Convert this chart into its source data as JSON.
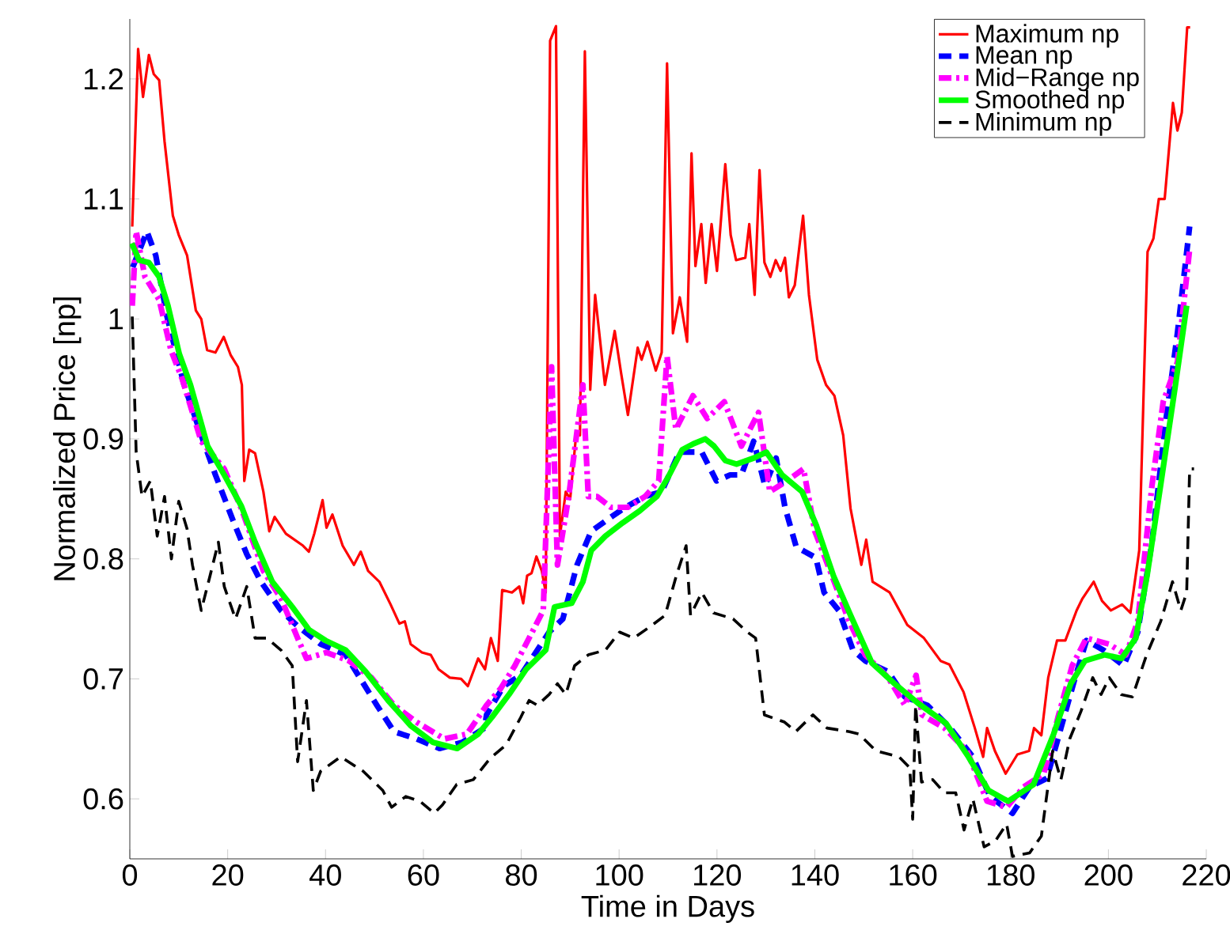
{
  "chart_data": {
    "type": "line",
    "xlabel": "Time in Days",
    "ylabel": "Normalized Price [np]",
    "xlim": [
      0,
      220
    ],
    "ylim": [
      0.55,
      1.25
    ],
    "xticks": [
      0,
      20,
      40,
      60,
      80,
      100,
      120,
      140,
      160,
      180,
      200,
      220
    ],
    "yticks": [
      0.6,
      0.7,
      0.8,
      0.9,
      1,
      1.1,
      1.2
    ],
    "legend": "top right",
    "series": [
      {
        "name": "Maximum np",
        "color": "#ff0000",
        "line_style": "solid",
        "x": [
          0.5,
          1.7,
          2.7,
          3.9,
          4.9,
          6.0,
          7.1,
          8.8,
          10.0,
          11.7,
          13.5,
          14.6,
          15.8,
          17.5,
          19.2,
          20.6,
          22.1,
          22.9,
          23.4,
          24.4,
          25.6,
          27.3,
          28.5,
          29.6,
          31.9,
          35.4,
          36.6,
          37.7,
          39.4,
          40.2,
          41.4,
          43.5,
          45.8,
          47.2,
          48.7,
          51.0,
          53.3,
          55.1,
          56.2,
          57.4,
          59.7,
          61.5,
          63.1,
          65.4,
          67.7,
          69.1,
          71.2,
          72.6,
          73.8,
          75.2,
          76.1,
          78.1,
          79.6,
          80.4,
          81.2,
          82.1,
          83.1,
          84.2,
          85.0,
          85.9,
          87.1,
          87.9,
          89.1,
          90.0,
          91.2,
          92.0,
          93.0,
          94.1,
          95.1,
          97.1,
          99.1,
          100.4,
          101.8,
          103.8,
          104.6,
          105.8,
          107.5,
          108.7,
          109.8,
          111.0,
          112.4,
          113.9,
          114.8,
          115.6,
          116.8,
          117.7,
          118.9,
          120.0,
          121.7,
          122.8,
          123.9,
          125.8,
          126.6,
          127.7,
          128.7,
          129.7,
          130.9,
          132.0,
          133.0,
          133.9,
          134.7,
          135.9,
          137.6,
          138.8,
          140.5,
          142.3,
          144.0,
          145.8,
          147.3,
          149.5,
          150.5,
          151.8,
          155.3,
          158.9,
          162.3,
          165.7,
          167.5,
          170.4,
          172.7,
          174.4,
          175.2,
          176.8,
          179.0,
          181.4,
          183.8,
          184.8,
          186.3,
          187.7,
          189.5,
          191.2,
          193.5,
          194.7,
          197.0,
          198.7,
          200.5,
          202.8,
          204.5,
          206.3,
          208.0,
          209.2,
          210.3,
          211.5,
          213.2,
          214.1,
          215.0,
          216.1,
          216.7
        ],
        "values": [
          1.077,
          1.225,
          1.185,
          1.22,
          1.204,
          1.199,
          1.148,
          1.086,
          1.07,
          1.053,
          1.007,
          1.0,
          0.974,
          0.972,
          0.985,
          0.97,
          0.96,
          0.945,
          0.865,
          0.891,
          0.888,
          0.856,
          0.823,
          0.835,
          0.821,
          0.811,
          0.806,
          0.821,
          0.849,
          0.826,
          0.837,
          0.811,
          0.795,
          0.806,
          0.79,
          0.781,
          0.762,
          0.746,
          0.748,
          0.729,
          0.722,
          0.72,
          0.708,
          0.701,
          0.7,
          0.694,
          0.717,
          0.708,
          0.734,
          0.715,
          0.774,
          0.772,
          0.777,
          0.763,
          0.786,
          0.788,
          0.802,
          0.79,
          0.772,
          1.232,
          1.244,
          0.819,
          0.856,
          0.85,
          0.903,
          0.903,
          1.223,
          0.941,
          1.02,
          0.945,
          0.99,
          0.955,
          0.92,
          0.976,
          0.966,
          0.981,
          0.957,
          0.972,
          1.213,
          0.988,
          1.018,
          0.981,
          1.138,
          1.044,
          1.079,
          1.03,
          1.079,
          1.04,
          1.129,
          1.07,
          1.049,
          1.051,
          1.079,
          1.02,
          1.124,
          1.047,
          1.035,
          1.049,
          1.04,
          1.051,
          1.018,
          1.028,
          1.086,
          1.02,
          0.966,
          0.945,
          0.936,
          0.903,
          0.842,
          0.795,
          0.816,
          0.781,
          0.772,
          0.745,
          0.734,
          0.715,
          0.712,
          0.689,
          0.659,
          0.635,
          0.659,
          0.64,
          0.621,
          0.637,
          0.64,
          0.659,
          0.653,
          0.701,
          0.732,
          0.732,
          0.757,
          0.767,
          0.781,
          0.765,
          0.757,
          0.762,
          0.755,
          0.807,
          1.056,
          1.067,
          1.1,
          1.1,
          1.18,
          1.157,
          1.172,
          1.243,
          1.243
        ]
      },
      {
        "name": "Mean np",
        "color": "#0000ff",
        "line_style": "dashed",
        "x": [
          0.6,
          3.5,
          5.3,
          7.6,
          11.1,
          14.6,
          17.5,
          21.0,
          23.9,
          26.8,
          30.9,
          34.3,
          39.0,
          44.1,
          47.0,
          50.5,
          54.0,
          58.6,
          63.3,
          67.9,
          72.5,
          72.9,
          76.4,
          79.9,
          83.3,
          85.7,
          88.5,
          91.4,
          94.3,
          97.7,
          101.3,
          105.3,
          108.7,
          112.3,
          116.9,
          119.9,
          122.7,
          125.0,
          127.5,
          129.8,
          132.1,
          133.9,
          136.2,
          140.2,
          141.9,
          144.9,
          147.8,
          150.3,
          155.0,
          158.4,
          163.0,
          167.7,
          172.3,
          175.8,
          180.4,
          183.9,
          187.4,
          190.3,
          193.2,
          195.5,
          199.0,
          203.1,
          206.0,
          208.9,
          211.8,
          214.1,
          216.6
        ],
        "values": [
          1.043,
          1.073,
          1.053,
          1.002,
          0.945,
          0.903,
          0.87,
          0.833,
          0.804,
          0.781,
          0.757,
          0.744,
          0.729,
          0.72,
          0.701,
          0.678,
          0.656,
          0.65,
          0.642,
          0.647,
          0.659,
          0.67,
          0.694,
          0.703,
          0.724,
          0.739,
          0.75,
          0.795,
          0.823,
          0.833,
          0.843,
          0.852,
          0.856,
          0.889,
          0.889,
          0.865,
          0.87,
          0.87,
          0.898,
          0.861,
          0.884,
          0.843,
          0.81,
          0.801,
          0.772,
          0.757,
          0.724,
          0.715,
          0.706,
          0.685,
          0.678,
          0.659,
          0.635,
          0.602,
          0.588,
          0.61,
          0.617,
          0.659,
          0.701,
          0.732,
          0.724,
          0.711,
          0.739,
          0.814,
          0.917,
          0.988,
          1.077
        ]
      },
      {
        "name": "Mid−Range np",
        "color": "#ff00ff",
        "line_style": "dashdot",
        "x": [
          0.5,
          1.3,
          3.1,
          6.0,
          8.4,
          10.7,
          14.6,
          19.3,
          22.8,
          27.3,
          30.9,
          34.3,
          36.1,
          40.2,
          44.8,
          49.4,
          54.0,
          58.6,
          64.3,
          68.9,
          72.9,
          75.8,
          78.7,
          81.6,
          84.5,
          86.2,
          87.4,
          89.7,
          92.6,
          93.7,
          95.5,
          98.3,
          101.8,
          105.3,
          108.1,
          109.8,
          111.6,
          115.1,
          118.0,
          121.5,
          125.0,
          128.5,
          130.8,
          134.3,
          137.7,
          140.0,
          143.5,
          147.0,
          150.3,
          155.0,
          158.4,
          160.7,
          161.9,
          166.5,
          171.1,
          175.2,
          179.2,
          182.7,
          186.8,
          189.7,
          192.6,
          195.5,
          200.1,
          203.6,
          206.0,
          208.9,
          211.2,
          214.1,
          216.6
        ],
        "values": [
          1.011,
          1.073,
          1.035,
          1.016,
          0.974,
          0.95,
          0.898,
          0.875,
          0.842,
          0.79,
          0.767,
          0.734,
          0.717,
          0.722,
          0.715,
          0.701,
          0.678,
          0.664,
          0.65,
          0.654,
          0.678,
          0.692,
          0.711,
          0.734,
          0.757,
          0.96,
          0.795,
          0.852,
          0.945,
          0.852,
          0.852,
          0.843,
          0.843,
          0.852,
          0.865,
          0.969,
          0.908,
          0.936,
          0.917,
          0.931,
          0.894,
          0.922,
          0.856,
          0.865,
          0.875,
          0.823,
          0.786,
          0.748,
          0.72,
          0.701,
          0.678,
          0.703,
          0.67,
          0.659,
          0.64,
          0.598,
          0.593,
          0.61,
          0.621,
          0.668,
          0.711,
          0.734,
          0.729,
          0.72,
          0.748,
          0.861,
          0.931,
          0.964,
          1.058
        ]
      },
      {
        "name": "Smoothed np",
        "color": "#00ff00",
        "line_style": "solid",
        "x": [
          0.4,
          1.9,
          3.9,
          6.0,
          7.8,
          10.1,
          12.4,
          15.9,
          19.3,
          22.8,
          25.6,
          29.1,
          33.2,
          36.6,
          40.0,
          44.1,
          48.2,
          52.8,
          57.4,
          62.0,
          66.9,
          71.2,
          74.0,
          77.5,
          81.0,
          85.0,
          86.8,
          90.3,
          92.6,
          94.3,
          97.2,
          100.7,
          104.2,
          107.7,
          110.0,
          112.9,
          115.2,
          117.6,
          119.4,
          121.7,
          124.0,
          127.5,
          130.1,
          133.3,
          137.4,
          140.3,
          143.8,
          147.3,
          151.7,
          156.3,
          161.0,
          166.8,
          171.4,
          175.5,
          179.5,
          184.7,
          188.8,
          192.3,
          195.2,
          199.2,
          202.7,
          205.6,
          207.9,
          210.8,
          213.7,
          216.0
        ],
        "values": [
          1.063,
          1.049,
          1.047,
          1.035,
          1.011,
          0.971,
          0.945,
          0.894,
          0.87,
          0.844,
          0.814,
          0.781,
          0.76,
          0.741,
          0.732,
          0.724,
          0.706,
          0.682,
          0.661,
          0.647,
          0.642,
          0.654,
          0.668,
          0.687,
          0.708,
          0.724,
          0.76,
          0.763,
          0.781,
          0.807,
          0.819,
          0.83,
          0.84,
          0.852,
          0.868,
          0.891,
          0.896,
          0.9,
          0.894,
          0.882,
          0.879,
          0.884,
          0.889,
          0.87,
          0.856,
          0.828,
          0.786,
          0.753,
          0.713,
          0.696,
          0.68,
          0.663,
          0.635,
          0.607,
          0.598,
          0.612,
          0.654,
          0.696,
          0.715,
          0.72,
          0.717,
          0.734,
          0.786,
          0.865,
          0.945,
          1.011
        ]
      },
      {
        "name": "Minimum np",
        "color": "#000000",
        "line_style": "dashed",
        "x": [
          0.5,
          1.3,
          2.5,
          4.2,
          5.6,
          7.1,
          8.5,
          10.0,
          11.7,
          12.8,
          14.6,
          16.4,
          18.1,
          19.3,
          21.6,
          23.9,
          25.6,
          28.0,
          30.9,
          33.2,
          34.3,
          36.1,
          37.5,
          39.0,
          43.1,
          47.7,
          51.7,
          53.5,
          56.4,
          59.3,
          62.2,
          63.9,
          66.8,
          70.2,
          73.1,
          74.0,
          76.9,
          79.9,
          81.6,
          83.3,
          85.7,
          87.4,
          89.1,
          90.9,
          93.7,
          97.2,
          100.1,
          103.0,
          106.5,
          109.4,
          111.7,
          113.7,
          114.6,
          116.9,
          119.3,
          123.3,
          126.2,
          127.9,
          129.7,
          133.8,
          136.1,
          139.6,
          142.5,
          147.1,
          149.0,
          152.5,
          157.2,
          159.4,
          160.0,
          160.6,
          161.8,
          164.1,
          166.5,
          168.8,
          170.5,
          172.3,
          174.6,
          176.9,
          179.2,
          180.4,
          183.9,
          186.3,
          188.6,
          190.3,
          192.1,
          194.4,
          196.8,
          198.5,
          200.2,
          202.6,
          204.9,
          207.8,
          210.7,
          213.1,
          214.8,
          216.0,
          216.6,
          217.5
        ],
        "values": [
          1.002,
          0.889,
          0.852,
          0.865,
          0.819,
          0.852,
          0.8,
          0.848,
          0.825,
          0.795,
          0.757,
          0.786,
          0.814,
          0.777,
          0.75,
          0.777,
          0.734,
          0.734,
          0.724,
          0.711,
          0.631,
          0.682,
          0.607,
          0.623,
          0.635,
          0.623,
          0.607,
          0.593,
          0.602,
          0.598,
          0.588,
          0.595,
          0.612,
          0.616,
          0.631,
          0.635,
          0.645,
          0.668,
          0.682,
          0.678,
          0.687,
          0.696,
          0.687,
          0.711,
          0.72,
          0.724,
          0.739,
          0.734,
          0.744,
          0.753,
          0.786,
          0.811,
          0.753,
          0.772,
          0.755,
          0.75,
          0.739,
          0.734,
          0.67,
          0.664,
          0.656,
          0.67,
          0.659,
          0.656,
          0.654,
          0.64,
          0.635,
          0.626,
          0.583,
          0.678,
          0.614,
          0.616,
          0.605,
          0.605,
          0.574,
          0.6,
          0.56,
          0.565,
          0.579,
          0.552,
          0.555,
          0.569,
          0.64,
          0.616,
          0.65,
          0.673,
          0.701,
          0.687,
          0.701,
          0.687,
          0.685,
          0.72,
          0.748,
          0.781,
          0.757,
          0.772,
          0.875,
          0.875
        ]
      }
    ]
  }
}
